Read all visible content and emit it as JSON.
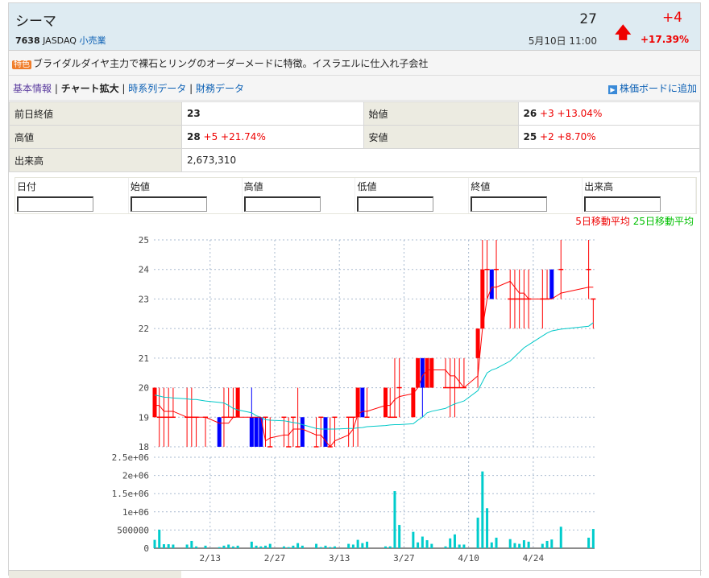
{
  "header": {
    "name": "シーマ",
    "code": "7638",
    "market": "JASDAQ",
    "sector": "小売業",
    "price": "27",
    "change": "+4",
    "time": "5月10日 11:00",
    "change_pct": "+17.39%",
    "arrow_icon": "up-arrow-icon"
  },
  "feature": {
    "badge": "特色",
    "text": "ブライダルダイヤ主力で裸石とリングのオーダーメードに特徴。イスラエルに仕入れ子会社"
  },
  "nav": {
    "items": [
      "基本情報",
      "チャート拡大",
      "時系列データ",
      "財務データ"
    ],
    "current": "チャート拡大",
    "add_board": "株価ボードに追加"
  },
  "info": {
    "prev_close_label": "前日終値",
    "prev_close": "23",
    "open_label": "始値",
    "open": "26",
    "open_chg": "+3 +13.04%",
    "high_label": "高値",
    "high": "28",
    "high_chg": "+5 +21.74%",
    "low_label": "安値",
    "low": "25",
    "low_chg": "+2 +8.70%",
    "volume_label": "出来高",
    "volume": "2,673,310"
  },
  "form": {
    "columns": [
      "日付",
      "始値",
      "高値",
      "低値",
      "終値",
      "出来高"
    ]
  },
  "legend": {
    "ma5": "5日移動平均",
    "ma25": "25日移動平均",
    "ma5_color": "#ff0000",
    "ma25_color": "#00c000"
  },
  "chart_data": {
    "type": "candlestick+bar",
    "price_axis": {
      "ticks": [
        "18",
        "19",
        "20",
        "21",
        "22",
        "23",
        "24",
        "25"
      ],
      "range": [
        18,
        25
      ]
    },
    "volume_axis": {
      "ticks": [
        "0",
        "500000",
        "1e+06",
        "1.5e+06",
        "2e+06",
        "2.5e+06"
      ],
      "range": [
        0,
        2500000
      ]
    },
    "date_ticks": [
      "2/13",
      "2/27",
      "3/13",
      "3/27",
      "4/10",
      "4/24"
    ],
    "grid": true,
    "colors": {
      "up": "#ff0000",
      "down": "#0000ff",
      "ma5": "#ff0000",
      "ma25": "#00c8c8",
      "volume": "#00cccc"
    },
    "columns": [
      "date",
      "open",
      "high",
      "low",
      "close",
      "volume",
      "ma5",
      "ma25"
    ],
    "rows": [
      [
        "2/1",
        19,
        20,
        19,
        20,
        230000,
        19.4,
        19.75
      ],
      [
        "2/2",
        19,
        20,
        18,
        19,
        510000,
        19.4,
        19.72
      ],
      [
        "2/3",
        19,
        20,
        18,
        19,
        110000,
        19.2,
        19.68
      ],
      [
        "2/4",
        19,
        20,
        18,
        19,
        110000,
        19.2,
        19.67
      ],
      [
        "2/5",
        19,
        20,
        19,
        19,
        100000,
        19.2,
        19.65
      ],
      [
        "2/8",
        19,
        20,
        18,
        19,
        100000,
        19.0,
        19.62
      ],
      [
        "2/9",
        19,
        20,
        18,
        19,
        200000,
        19.0,
        19.6
      ],
      [
        "2/10",
        19,
        19,
        18,
        19,
        50000,
        19.0,
        19.6
      ],
      [
        "2/12",
        19,
        19,
        18,
        19,
        70000,
        19.0,
        19.55
      ],
      [
        "2/15",
        19,
        19,
        18,
        18,
        30000,
        18.8,
        19.5
      ],
      [
        "2/16",
        19,
        20,
        18,
        19,
        70000,
        18.8,
        19.48
      ],
      [
        "2/17",
        19,
        20,
        19,
        19,
        100000,
        18.8,
        19.4
      ],
      [
        "2/18",
        19,
        20,
        19,
        19,
        50000,
        19.0,
        19.3
      ],
      [
        "2/19",
        19,
        20,
        19,
        20,
        70000,
        19.0,
        19.25
      ],
      [
        "2/22",
        19,
        20,
        18,
        18,
        180000,
        19.0,
        19.15
      ],
      [
        "2/23",
        19,
        19,
        18,
        18,
        70000,
        19.0,
        19.05
      ],
      [
        "2/24",
        19,
        19,
        18,
        18,
        50000,
        19.0,
        19.0
      ],
      [
        "2/25",
        19,
        19,
        18,
        19,
        70000,
        18.2,
        18.92
      ],
      [
        "2/26",
        18,
        19,
        18,
        18,
        120000,
        18.3,
        18.9
      ],
      [
        "3/1",
        19,
        19,
        18,
        19,
        50000,
        18.4,
        18.88
      ],
      [
        "3/2",
        18,
        19,
        18,
        18,
        30000,
        18.4,
        18.85
      ],
      [
        "3/3",
        19,
        19,
        18,
        19,
        70000,
        18.6,
        18.82
      ],
      [
        "3/4",
        18,
        20,
        18,
        18,
        140000,
        18.6,
        18.8
      ],
      [
        "3/5",
        19,
        19,
        18,
        18,
        70000,
        18.6,
        18.75
      ],
      [
        "3/8",
        18,
        19,
        18,
        18,
        120000,
        18.4,
        18.62
      ],
      [
        "3/9",
        19,
        19,
        18,
        19,
        30000,
        18.4,
        18.6
      ],
      [
        "3/10",
        19,
        19,
        18,
        18,
        70000,
        18.2,
        18.6
      ],
      [
        "3/11",
        18,
        19,
        18,
        18,
        30000,
        18.0,
        18.6
      ],
      [
        "3/12",
        19,
        19,
        18,
        19,
        50000,
        18.2,
        18.6
      ],
      [
        "3/15",
        19,
        19,
        18,
        19,
        120000,
        18.4,
        18.62
      ],
      [
        "3/16",
        19,
        19,
        18,
        19,
        100000,
        18.6,
        18.62
      ],
      [
        "3/17",
        19,
        20,
        18,
        20,
        230000,
        19.1,
        18.64
      ],
      [
        "3/18",
        20,
        20,
        19,
        19,
        140000,
        19.2,
        18.65
      ],
      [
        "3/19",
        19,
        20,
        19,
        19,
        180000,
        19.2,
        18.68
      ],
      [
        "3/23",
        19,
        20,
        19,
        20,
        50000,
        19.4,
        18.72
      ],
      [
        "3/24",
        19,
        20,
        19,
        19,
        50000,
        19.4,
        18.74
      ],
      [
        "3/25",
        19,
        21,
        19,
        19,
        1570000,
        19.6,
        18.75
      ],
      [
        "3/26",
        20,
        21,
        19,
        20,
        640000,
        19.7,
        18.75
      ],
      [
        "3/29",
        19,
        20,
        19,
        20,
        450000,
        19.8,
        18.78
      ],
      [
        "3/30",
        20,
        21,
        20,
        21,
        160000,
        20.0,
        18.9
      ],
      [
        "3/31",
        21,
        21,
        19,
        20,
        320000,
        20.4,
        19.0
      ],
      [
        "4/1",
        20,
        21,
        20,
        21,
        220000,
        20.6,
        19.15
      ],
      [
        "4/2",
        20,
        21,
        20,
        21,
        120000,
        20.6,
        19.2
      ],
      [
        "4/5",
        20,
        21,
        20,
        20,
        50000,
        20.6,
        19.3
      ],
      [
        "4/6",
        20,
        21,
        19,
        20,
        270000,
        20.4,
        19.38
      ],
      [
        "4/7",
        20,
        21,
        19,
        20,
        380000,
        20.4,
        19.45
      ],
      [
        "4/8",
        20,
        21,
        20,
        20,
        100000,
        20.2,
        19.5
      ],
      [
        "4/9",
        20,
        21,
        20,
        20,
        100000,
        20.0,
        19.55
      ],
      [
        "4/12",
        21,
        22,
        20,
        22,
        840000,
        20.4,
        19.9
      ],
      [
        "4/13",
        22,
        25,
        22,
        24,
        2110000,
        22.0,
        20.2
      ],
      [
        "4/14",
        24,
        25,
        23,
        24,
        1100000,
        23.0,
        20.5
      ],
      [
        "4/15",
        24,
        24,
        23,
        23,
        160000,
        23.4,
        20.6
      ],
      [
        "4/16",
        24,
        25,
        23,
        24,
        290000,
        23.4,
        20.65
      ],
      [
        "4/19",
        23,
        24,
        22,
        23,
        250000,
        23.6,
        20.9
      ],
      [
        "4/20",
        23,
        24,
        22,
        23,
        140000,
        23.4,
        21.05
      ],
      [
        "4/21",
        23,
        24,
        22,
        23,
        120000,
        23.2,
        21.2
      ],
      [
        "4/22",
        23,
        24,
        22,
        23,
        220000,
        23.2,
        21.35
      ],
      [
        "4/23",
        23,
        24,
        22,
        23,
        180000,
        23.0,
        21.45
      ],
      [
        "4/26",
        23,
        24,
        22,
        23,
        120000,
        23.0,
        21.75
      ],
      [
        "4/27",
        23,
        24,
        23,
        23,
        200000,
        23.0,
        21.85
      ],
      [
        "4/28",
        24,
        24,
        23,
        23,
        240000,
        23.0,
        21.92
      ],
      [
        "4/30",
        24,
        25,
        23,
        24,
        590000,
        23.2,
        21.98
      ],
      [
        "5/6",
        24,
        25,
        23,
        24,
        290000,
        23.4,
        22.08
      ],
      [
        "5/7",
        23,
        23,
        22,
        23,
        530000,
        23.4,
        22.2
      ]
    ]
  }
}
